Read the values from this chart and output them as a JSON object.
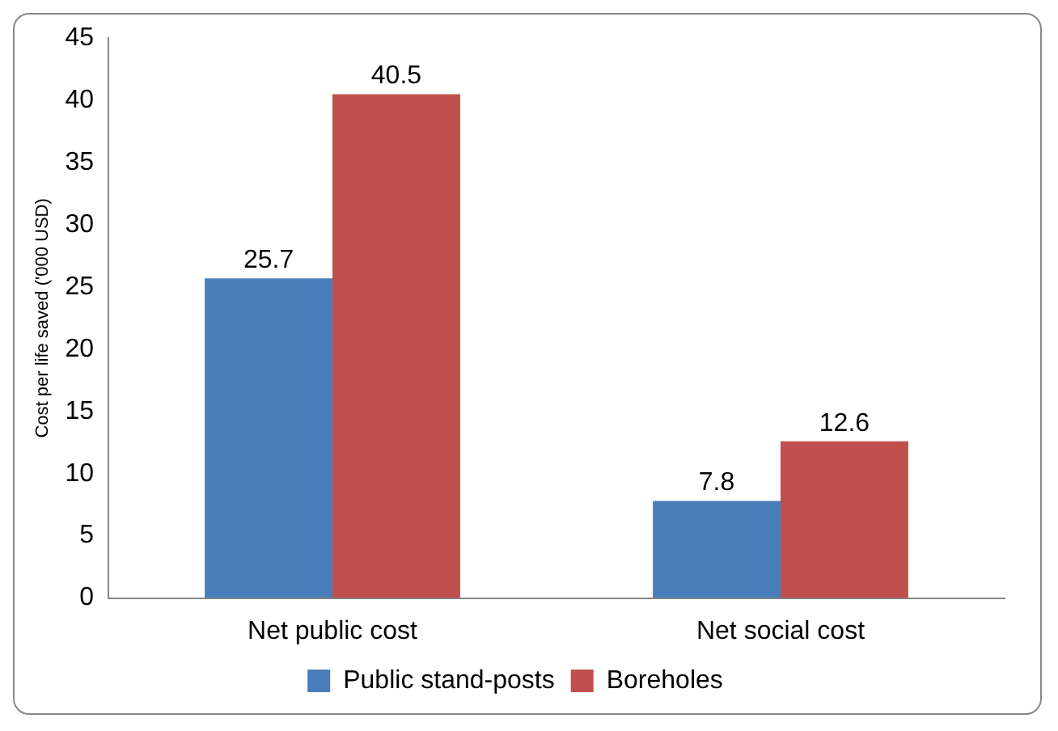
{
  "chart_data": {
    "type": "bar",
    "ylabel": "Cost per life saved ('000 USD)",
    "categories": [
      "Net public cost",
      "Net social cost"
    ],
    "series": [
      {
        "name": "Public stand-posts",
        "color": "#4a7ebb",
        "values": [
          25.7,
          7.8
        ]
      },
      {
        "name": "Boreholes",
        "color": "#c0504d",
        "values": [
          40.5,
          12.6
        ]
      }
    ],
    "ylim": [
      0,
      45
    ],
    "yticks": [
      0,
      5,
      10,
      15,
      20,
      25,
      30,
      35,
      40,
      45
    ],
    "grid": false,
    "legend": "bottom",
    "data_labels": true
  }
}
